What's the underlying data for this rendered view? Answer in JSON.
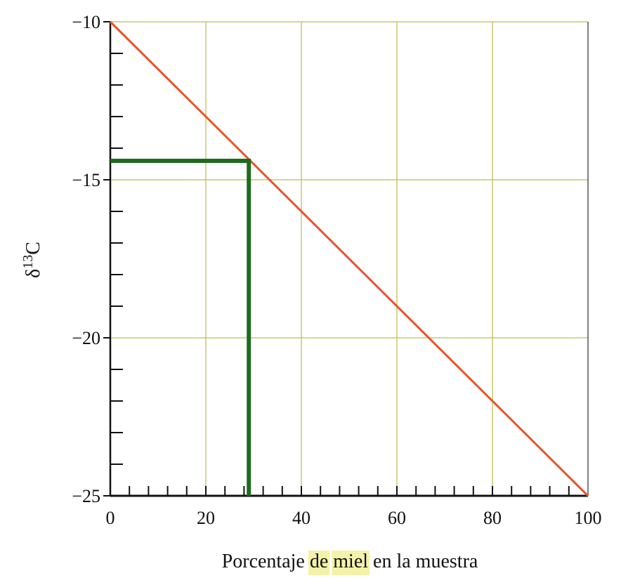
{
  "chart_data": {
    "type": "line",
    "title": "",
    "xlabel_parts": [
      {
        "text": "Porcentaje ",
        "highlight": false
      },
      {
        "text": "de",
        "highlight": true
      },
      {
        "text": " ",
        "highlight": false
      },
      {
        "text": "miel",
        "highlight": true
      },
      {
        "text": " en la muestra",
        "highlight": false
      }
    ],
    "ylabel_base": "δ",
    "ylabel_sup": "13",
    "ylabel_tail": "C",
    "xlim": [
      0,
      100
    ],
    "ylim": [
      -25,
      -10
    ],
    "x_ticks": [
      0,
      20,
      40,
      60,
      80,
      100
    ],
    "x_tick_labels": [
      "0",
      "20",
      "40",
      "60",
      "80",
      "100"
    ],
    "y_ticks": [
      -10,
      -15,
      -20,
      -25
    ],
    "y_tick_labels": [
      "−10",
      "−15",
      "−20",
      "−25"
    ],
    "y_minor_step": 1,
    "x_minor_step": 4,
    "grid": true,
    "series": [
      {
        "x": [
          0,
          100
        ],
        "y": [
          -10,
          -25
        ],
        "color": "#e8542a"
      }
    ],
    "reference_lines": [
      {
        "x": [
          0,
          29,
          29
        ],
        "y": [
          -14.4,
          -14.4,
          -25
        ],
        "color": "#1e6b1e"
      }
    ],
    "colors": {
      "grid": "#c8c86a",
      "highlight": "#f4f2a8",
      "axis": "#111111"
    }
  }
}
